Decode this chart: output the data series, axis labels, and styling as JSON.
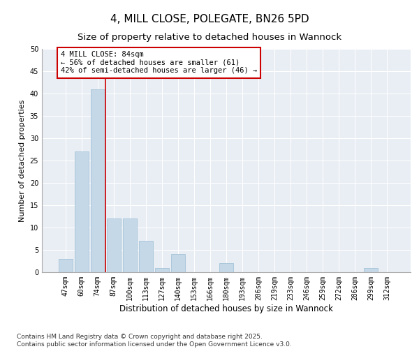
{
  "title": "4, MILL CLOSE, POLEGATE, BN26 5PD",
  "subtitle": "Size of property relative to detached houses in Wannock",
  "xlabel": "Distribution of detached houses by size in Wannock",
  "ylabel": "Number of detached properties",
  "categories": [
    "47sqm",
    "60sqm",
    "74sqm",
    "87sqm",
    "100sqm",
    "113sqm",
    "127sqm",
    "140sqm",
    "153sqm",
    "166sqm",
    "180sqm",
    "193sqm",
    "206sqm",
    "219sqm",
    "233sqm",
    "246sqm",
    "259sqm",
    "272sqm",
    "286sqm",
    "299sqm",
    "312sqm"
  ],
  "values": [
    3,
    27,
    41,
    12,
    12,
    7,
    1,
    4,
    0,
    0,
    2,
    0,
    0,
    0,
    0,
    0,
    0,
    0,
    0,
    1,
    0
  ],
  "bar_color": "#c5d8e8",
  "bar_edge_color": "#9bbdd4",
  "vline_x_index": 2.5,
  "vline_color": "#cc0000",
  "annotation_text": "4 MILL CLOSE: 84sqm\n← 56% of detached houses are smaller (61)\n42% of semi-detached houses are larger (46) →",
  "annotation_box_color": "#ffffff",
  "annotation_box_edge": "#cc0000",
  "ylim": [
    0,
    50
  ],
  "yticks": [
    0,
    5,
    10,
    15,
    20,
    25,
    30,
    35,
    40,
    45,
    50
  ],
  "background_color": "#e8eef4",
  "footer": "Contains HM Land Registry data © Crown copyright and database right 2025.\nContains public sector information licensed under the Open Government Licence v3.0.",
  "title_fontsize": 11,
  "subtitle_fontsize": 9.5,
  "xlabel_fontsize": 8.5,
  "ylabel_fontsize": 8,
  "tick_fontsize": 7,
  "annotation_fontsize": 7.5,
  "footer_fontsize": 6.5
}
